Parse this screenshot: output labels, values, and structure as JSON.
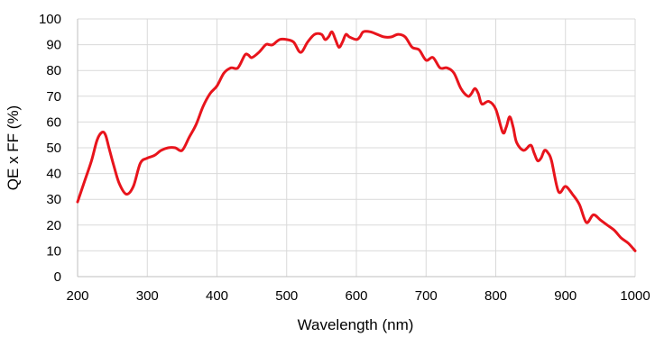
{
  "chart_data": {
    "type": "line",
    "title": "",
    "xlabel": "Wavelength (nm)",
    "ylabel": "QE x FF (%)",
    "xlim": [
      200,
      1000
    ],
    "ylim": [
      0,
      100
    ],
    "x_ticks": [
      200,
      300,
      400,
      500,
      600,
      700,
      800,
      900,
      1000
    ],
    "y_ticks": [
      0,
      10,
      20,
      30,
      40,
      50,
      60,
      70,
      80,
      90,
      100
    ],
    "grid": true,
    "legend": "none",
    "colors": {
      "series": "#e8141c",
      "grid": "#d9d9d9",
      "axis": "#bfbfbf",
      "text": "#000000"
    },
    "series": [
      {
        "x": [
          200,
          210,
          220,
          228,
          235,
          240,
          245,
          252,
          260,
          270,
          280,
          290,
          300,
          310,
          320,
          330,
          340,
          350,
          360,
          370,
          380,
          390,
          400,
          410,
          420,
          430,
          440,
          445,
          450,
          460,
          470,
          475,
          480,
          490,
          500,
          510,
          520,
          530,
          540,
          550,
          555,
          560,
          565,
          570,
          575,
          580,
          585,
          590,
          600,
          605,
          610,
          620,
          630,
          640,
          650,
          660,
          670,
          680,
          690,
          700,
          710,
          720,
          730,
          740,
          750,
          760,
          765,
          770,
          775,
          780,
          790,
          800,
          810,
          815,
          820,
          825,
          830,
          840,
          850,
          855,
          860,
          865,
          870,
          875,
          880,
          890,
          900,
          910,
          920,
          930,
          940,
          950,
          960,
          970,
          980,
          990,
          1000
        ],
        "y": [
          29,
          37,
          45,
          53,
          56,
          55,
          50,
          43,
          36,
          32,
          35,
          44,
          46,
          47,
          49,
          50,
          50,
          49,
          54,
          59,
          66,
          71,
          74,
          79,
          81,
          81,
          86,
          86,
          85,
          87,
          90,
          90,
          90,
          92,
          92,
          91,
          87,
          91,
          94,
          94,
          92,
          93,
          95,
          92,
          89,
          91,
          94,
          93,
          92,
          93,
          95,
          95,
          94,
          93,
          93,
          94,
          93,
          89,
          88,
          84,
          85,
          81,
          81,
          79,
          73,
          70,
          71,
          73,
          71,
          67,
          68,
          65,
          56,
          58,
          62,
          58,
          52,
          49,
          51,
          48,
          45,
          46,
          49,
          48,
          45,
          33,
          35,
          32,
          28,
          21,
          24,
          22,
          20,
          18,
          15,
          13,
          10
        ]
      }
    ]
  }
}
